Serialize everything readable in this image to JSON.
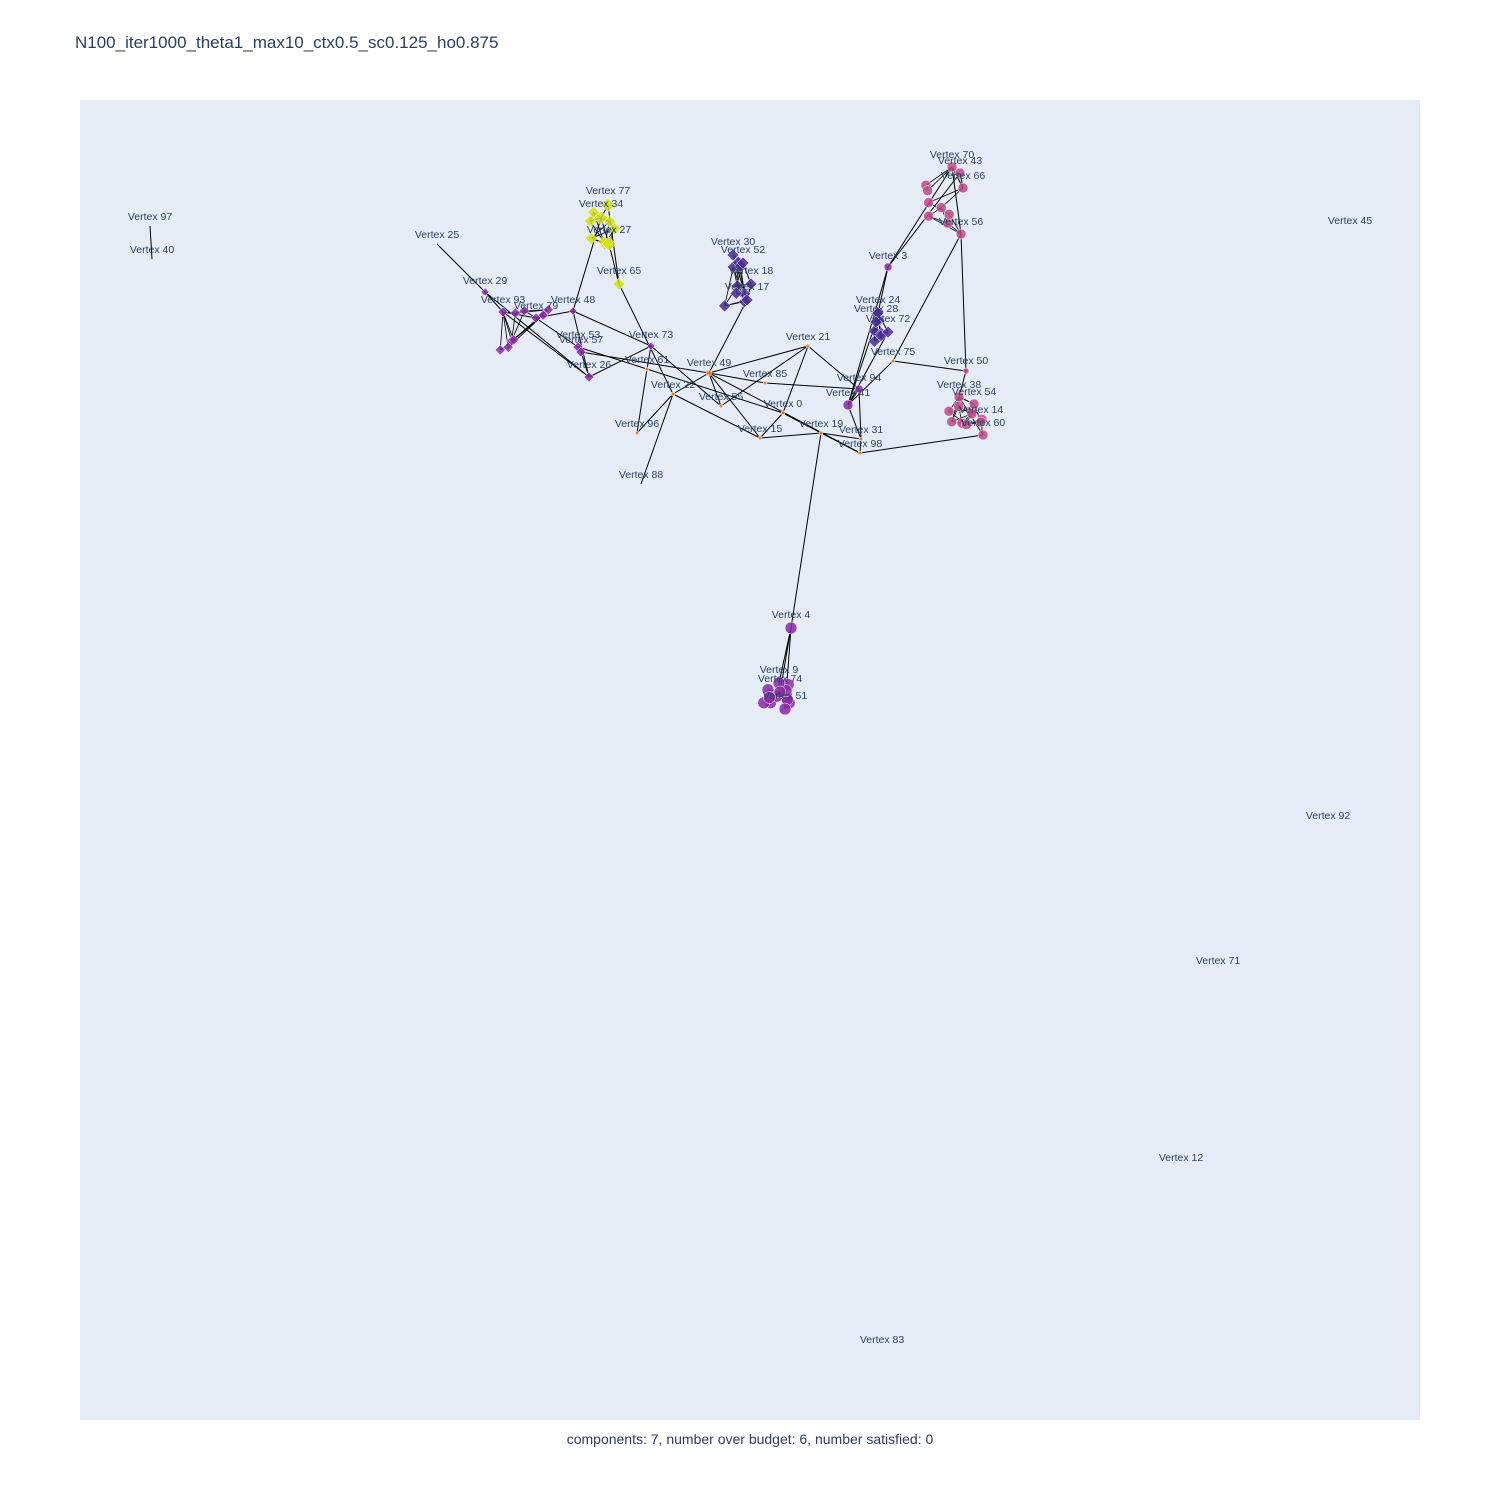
{
  "title": "N100_iter1000_theta1_max10_ctx0.5_sc0.125_ho0.875",
  "caption": "components: 7, number over budget: 6, number satisfied: 0",
  "colors": {
    "background": "#e5ecf6",
    "edge": "#000000",
    "text": "#2a3f5f",
    "yellow": "#d4e21a",
    "indigo": "#4a2d95",
    "violet": "#8a2aa6",
    "magenta": "#c04a8a",
    "orange": "#f08a3a"
  },
  "icons": {
    "diamond": "diamond-marker",
    "circle": "circle-marker"
  },
  "chart_data": {
    "type": "network",
    "components": 7,
    "number_over_budget": 6,
    "number_satisfied": 0,
    "nodes": [
      {
        "id": 0,
        "label": "Vertex 0"
      },
      {
        "id": 3,
        "label": "Vertex 3"
      },
      {
        "id": 4,
        "label": "Vertex 4"
      },
      {
        "id": 9,
        "label": "Vertex 9"
      },
      {
        "id": 12,
        "label": "Vertex 12"
      },
      {
        "id": 14,
        "label": "Vertex 14"
      },
      {
        "id": 15,
        "label": "Vertex 15"
      },
      {
        "id": 17,
        "label": "Vertex 17"
      },
      {
        "id": 18,
        "label": "Vertex 18"
      },
      {
        "id": 19,
        "label": "Vertex 19"
      },
      {
        "id": 21,
        "label": "Vertex 21"
      },
      {
        "id": 22,
        "label": "Vertex 22"
      },
      {
        "id": 24,
        "label": "Vertex 24"
      },
      {
        "id": 25,
        "label": "Vertex 25"
      },
      {
        "id": 26,
        "label": "Vertex 26"
      },
      {
        "id": 27,
        "label": "Vertex 27"
      },
      {
        "id": 28,
        "label": "Vertex 28"
      },
      {
        "id": 29,
        "label": "Vertex 29"
      },
      {
        "id": 30,
        "label": "Vertex 30"
      },
      {
        "id": 31,
        "label": "Vertex 31"
      },
      {
        "id": 34,
        "label": "Vertex 34"
      },
      {
        "id": 38,
        "label": "Vertex 38"
      },
      {
        "id": 40,
        "label": "Vertex 40"
      },
      {
        "id": 41,
        "label": "Vertex 41"
      },
      {
        "id": 43,
        "label": "Vertex 43"
      },
      {
        "id": 45,
        "label": "Vertex 45"
      },
      {
        "id": 48,
        "label": "Vertex 48"
      },
      {
        "id": 49,
        "label": "Vertex 49"
      },
      {
        "id": 50,
        "label": "Vertex 50"
      },
      {
        "id": 51,
        "label": "Vertex 51"
      },
      {
        "id": 52,
        "label": "Vertex 52"
      },
      {
        "id": 53,
        "label": "Vertex 53"
      },
      {
        "id": 54,
        "label": "Vertex 54"
      },
      {
        "id": 55,
        "label": "Vertex 55"
      },
      {
        "id": 56,
        "label": "Vertex 56"
      },
      {
        "id": 57,
        "label": "Vertex 57"
      },
      {
        "id": 60,
        "label": "Vertex 60"
      },
      {
        "id": 61,
        "label": "Vertex 61"
      },
      {
        "id": 65,
        "label": "Vertex 65"
      },
      {
        "id": 66,
        "label": "Vertex 66"
      },
      {
        "id": 70,
        "label": "Vertex 70"
      },
      {
        "id": 71,
        "label": "Vertex 71"
      },
      {
        "id": 72,
        "label": "Vertex 72"
      },
      {
        "id": 73,
        "label": "Vertex 73"
      },
      {
        "id": 74,
        "label": "Vertex 74"
      },
      {
        "id": 75,
        "label": "Vertex 75"
      },
      {
        "id": 77,
        "label": "Vertex 77"
      },
      {
        "id": 79,
        "label": "Vertex 79"
      },
      {
        "id": 83,
        "label": "Vertex 83"
      },
      {
        "id": 85,
        "label": "Vertex 85"
      },
      {
        "id": 88,
        "label": "Vertex 88"
      },
      {
        "id": 92,
        "label": "Vertex 92"
      },
      {
        "id": 93,
        "label": "Vertex 93"
      },
      {
        "id": 94,
        "label": "Vertex 94"
      },
      {
        "id": 96,
        "label": "Vertex 96"
      },
      {
        "id": 97,
        "label": "Vertex 97"
      },
      {
        "id": 98,
        "label": "Vertex 98"
      }
    ]
  }
}
